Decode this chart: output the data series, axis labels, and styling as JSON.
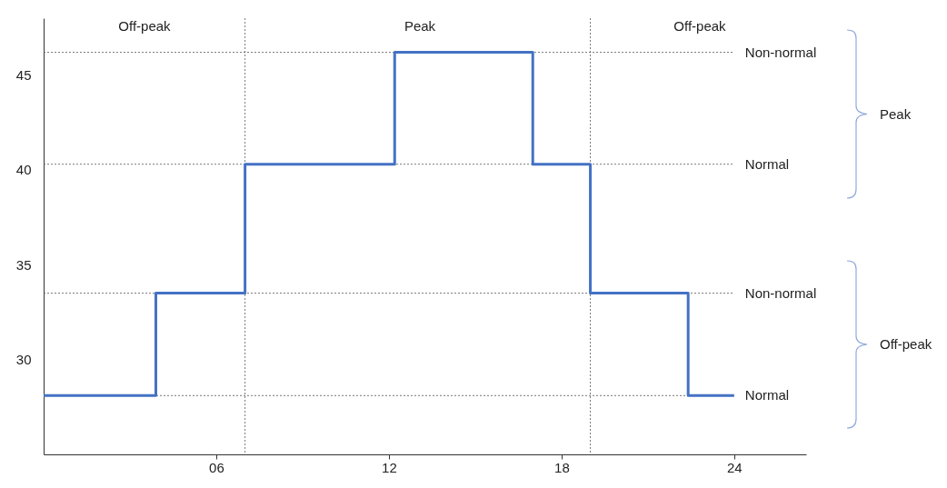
{
  "chart_data": {
    "type": "step",
    "x": [
      0,
      3.9,
      7,
      12.2,
      17,
      19,
      22.4,
      24
    ],
    "series": [
      {
        "color": "#4472c4",
        "values": [
          28.1,
          33.5,
          40.3,
          46.2,
          40.3,
          33.5,
          28.1,
          28.1
        ]
      }
    ],
    "xlim": [
      0,
      26.5
    ],
    "ylim": [
      25,
      48
    ],
    "xticks": [
      {
        "value": 6,
        "label": "06"
      },
      {
        "value": 12,
        "label": "12"
      },
      {
        "value": 18,
        "label": "18"
      },
      {
        "value": 24,
        "label": "24"
      }
    ],
    "yticks": [
      30,
      35,
      40,
      45
    ],
    "ref_lines": [
      {
        "axis": "y",
        "value": 46.2,
        "label": "Non-normal",
        "line_style": "dotted"
      },
      {
        "axis": "y",
        "value": 40.3,
        "label": "Normal",
        "line_style": "dotted"
      },
      {
        "axis": "y",
        "value": 33.5,
        "label": "Non-normal",
        "line_style": "dotted"
      },
      {
        "axis": "y",
        "value": 28.1,
        "label": "Normal",
        "line_style": "dotted"
      },
      {
        "axis": "x",
        "value": 7,
        "line_style": "dotted"
      },
      {
        "axis": "x",
        "value": 19,
        "line_style": "dotted"
      }
    ],
    "annotations": [
      "Off-peak",
      "Peak",
      "Off-peak",
      "Peak",
      "Off-peak"
    ]
  }
}
